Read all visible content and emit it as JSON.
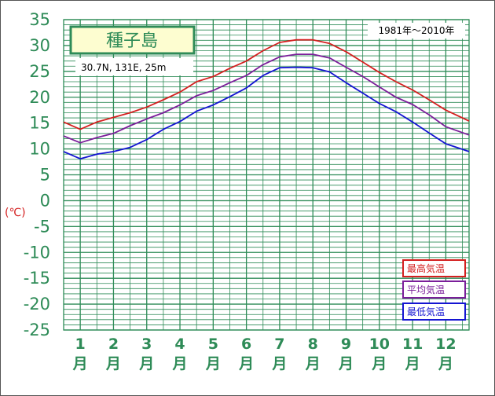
{
  "chart_data": {
    "type": "line",
    "title": "種子島",
    "location": "30.7N,  131E,  25m",
    "period": "1981年〜2010年",
    "ylabel": "(℃)",
    "ylim": [
      -25,
      35
    ],
    "yticks": [
      35,
      30,
      25,
      20,
      15,
      10,
      5,
      0,
      -5,
      -10,
      -15,
      -20,
      -25
    ],
    "xlim": [
      0.5,
      12.7
    ],
    "categories": [
      "1\n月",
      "2\n月",
      "3\n月",
      "4\n月",
      "5\n月",
      "6\n月",
      "7\n月",
      "8\n月",
      "9\n月",
      "10\n月",
      "11\n月",
      "12\n月"
    ],
    "legend_position": "bottom-right",
    "grid": true,
    "colors": {
      "grid": "#2e8b57",
      "axis_text": "#2e8b57",
      "max": "#d42020",
      "avg": "#7b1e9a",
      "min": "#1414d2",
      "title_bg": "#fdfdd0"
    },
    "series": [
      {
        "name": "最高気温",
        "key": "max",
        "x": [
          0.5,
          1.0,
          1.5,
          2.0,
          2.5,
          3.0,
          3.5,
          4.0,
          4.5,
          5.0,
          5.5,
          6.0,
          6.5,
          7.0,
          7.5,
          8.0,
          8.5,
          9.0,
          9.5,
          10.0,
          10.5,
          11.0,
          11.5,
          12.0,
          12.7
        ],
        "values": [
          15.2,
          13.8,
          15.2,
          16.1,
          17.0,
          18.1,
          19.5,
          21.0,
          23.0,
          24.0,
          25.6,
          27.0,
          29.0,
          30.6,
          31.1,
          31.1,
          30.4,
          28.8,
          26.8,
          24.8,
          23.0,
          21.4,
          19.5,
          17.5,
          15.4
        ]
      },
      {
        "name": "平均気温",
        "key": "avg",
        "x": [
          0.5,
          1.0,
          1.5,
          2.0,
          2.5,
          3.0,
          3.5,
          4.0,
          4.5,
          5.0,
          5.5,
          6.0,
          6.5,
          7.0,
          7.5,
          8.0,
          8.5,
          9.0,
          9.5,
          10.0,
          10.5,
          11.0,
          11.5,
          12.0,
          12.7
        ],
        "values": [
          12.5,
          11.2,
          12.2,
          13.0,
          14.5,
          15.8,
          17.0,
          18.5,
          20.3,
          21.3,
          22.8,
          24.2,
          26.3,
          27.8,
          28.3,
          28.3,
          27.6,
          25.8,
          24.0,
          22.0,
          20.0,
          18.6,
          16.6,
          14.3,
          12.7
        ]
      },
      {
        "name": "最低気温",
        "key": "min",
        "x": [
          0.5,
          1.0,
          1.5,
          2.0,
          2.5,
          3.0,
          3.5,
          4.0,
          4.5,
          5.0,
          5.5,
          6.0,
          6.5,
          7.0,
          7.5,
          8.0,
          8.5,
          9.0,
          9.5,
          10.0,
          10.5,
          11.0,
          11.5,
          12.0,
          12.7
        ],
        "values": [
          9.5,
          8.1,
          9.0,
          9.5,
          10.3,
          11.8,
          13.8,
          15.3,
          17.3,
          18.5,
          20.1,
          21.8,
          24.2,
          25.7,
          25.8,
          25.7,
          24.9,
          22.8,
          20.8,
          18.8,
          17.2,
          15.2,
          13.1,
          11.0,
          9.5
        ]
      }
    ]
  }
}
